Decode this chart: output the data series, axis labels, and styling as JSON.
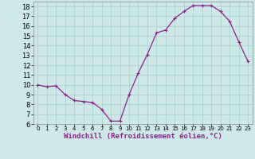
{
  "x": [
    0,
    1,
    2,
    3,
    4,
    5,
    6,
    7,
    8,
    9,
    10,
    11,
    12,
    13,
    14,
    15,
    16,
    17,
    18,
    19,
    20,
    21,
    22,
    23
  ],
  "y": [
    10,
    9.8,
    9.9,
    9.0,
    8.4,
    8.3,
    8.2,
    7.5,
    6.3,
    6.3,
    9.0,
    11.2,
    13.1,
    15.3,
    15.6,
    16.8,
    17.5,
    18.1,
    18.1,
    18.1,
    17.5,
    16.5,
    14.4,
    12.4
  ],
  "line_color": "#882288",
  "marker": "+",
  "marker_size": 3,
  "marker_edge_width": 0.8,
  "background_color": "#cce8e8",
  "grid_color": "#aacccc",
  "xlabel": "Windchill (Refroidissement éolien,°C)",
  "ylim": [
    6,
    18.5
  ],
  "xlim": [
    -0.5,
    23.5
  ],
  "yticks": [
    6,
    7,
    8,
    9,
    10,
    11,
    12,
    13,
    14,
    15,
    16,
    17,
    18
  ],
  "xticks": [
    0,
    1,
    2,
    3,
    4,
    5,
    6,
    7,
    8,
    9,
    10,
    11,
    12,
    13,
    14,
    15,
    16,
    17,
    18,
    19,
    20,
    21,
    22,
    23
  ],
  "xlabel_fontsize": 6.5,
  "tick_fontsize": 6,
  "line_width": 0.9,
  "fig_width": 3.2,
  "fig_height": 2.0,
  "dpi": 100
}
